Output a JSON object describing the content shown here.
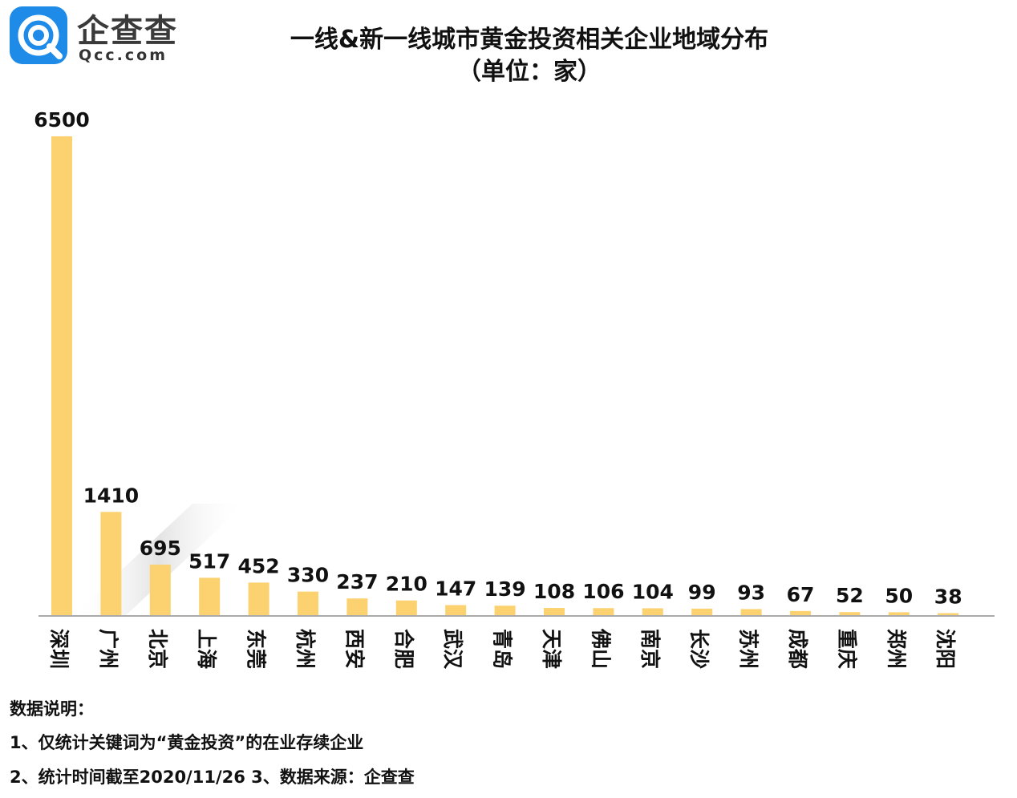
{
  "brand": {
    "name": "企查查",
    "domain": "Qcc.com",
    "icon": "qcc-logo-icon",
    "color": "#1e8be8"
  },
  "title": {
    "line1": "一线&新一线城市黄金投资相关企业地域分布",
    "line2": "（单位：家）"
  },
  "chart_data": {
    "type": "bar",
    "categories": [
      "深圳",
      "广州",
      "北京",
      "上海",
      "东莞",
      "杭州",
      "西安",
      "合肥",
      "武汉",
      "青岛",
      "天津",
      "佛山",
      "南京",
      "长沙",
      "苏州",
      "成都",
      "重庆",
      "郑州",
      "沈阳"
    ],
    "values": [
      6500,
      1410,
      695,
      517,
      452,
      330,
      237,
      210,
      147,
      139,
      108,
      106,
      104,
      99,
      93,
      67,
      52,
      50,
      38
    ],
    "labels": [
      "6500",
      "1410",
      "695",
      "517",
      "452",
      "330",
      "237",
      "210",
      "147",
      "139",
      "108",
      "106",
      "104",
      "99",
      "93",
      "67",
      "52",
      "50",
      "38"
    ],
    "ylim": [
      0,
      6500
    ],
    "bar_color": "#fcd16f",
    "grid": false,
    "xlabel": "",
    "ylabel": ""
  },
  "notes": {
    "heading": "数据说明：",
    "line1": "1、仅统计关键词为“黄金投资”的在业存续企业",
    "line2": "2、统计时间截至2020/11/26   3、数据来源：企查查"
  }
}
